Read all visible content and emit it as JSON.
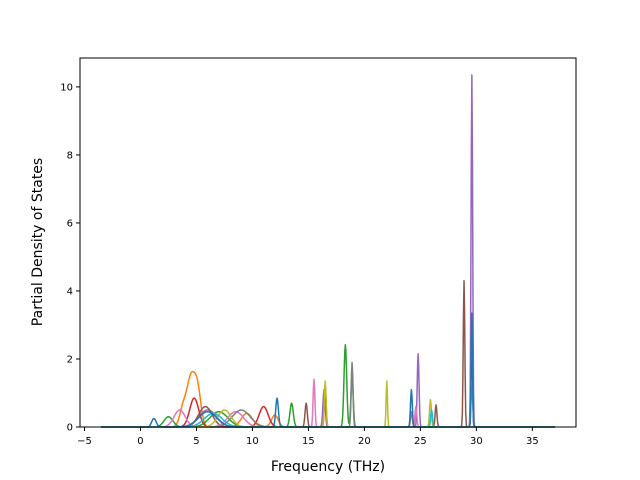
{
  "chart_data": {
    "type": "line",
    "title": "",
    "xlabel": "Frequency (THz)",
    "ylabel": "Partial Density of States",
    "xlim": [
      -5.4,
      38.9
    ],
    "ylim": [
      0,
      10.85
    ],
    "x_ticks": [
      -5,
      0,
      5,
      10,
      15,
      20,
      25,
      30,
      35
    ],
    "x_tick_labels": [
      "−5",
      "0",
      "5",
      "10",
      "15",
      "20",
      "25",
      "30",
      "35"
    ],
    "y_ticks": [
      0,
      2,
      4,
      6,
      8,
      10
    ],
    "y_tick_labels": [
      "0",
      "2",
      "4",
      "6",
      "8",
      "10"
    ],
    "grid": false,
    "legend": "none",
    "colors": [
      "#1f77b4",
      "#ff7f0e",
      "#2ca02c",
      "#d62728",
      "#9467bd",
      "#8c564b",
      "#e377c2",
      "#7f7f7f",
      "#bcbd22",
      "#17becf"
    ],
    "x_range": [
      -3.5,
      37
    ],
    "series": [
      {
        "color": "#ff7f0e",
        "peaks": [
          [
            4.5,
            1.4,
            0.35
          ],
          [
            5.1,
            1.05,
            0.3
          ],
          [
            3.8,
            0.55,
            0.3
          ],
          [
            9.5,
            0.4,
            0.5
          ],
          [
            12.0,
            0.35,
            0.3
          ]
        ]
      },
      {
        "color": "#2ca02c",
        "peaks": [
          [
            18.3,
            2.42,
            0.12
          ],
          [
            18.9,
            1.55,
            0.1
          ],
          [
            13.5,
            0.7,
            0.15
          ],
          [
            7.0,
            0.45,
            0.8
          ],
          [
            2.5,
            0.3,
            0.4
          ]
        ]
      },
      {
        "color": "#9467bd",
        "peaks": [
          [
            29.6,
            10.35,
            0.07
          ],
          [
            24.8,
            2.15,
            0.08
          ],
          [
            16.4,
            1.1,
            0.1
          ],
          [
            6.0,
            0.5,
            0.8
          ]
        ]
      },
      {
        "color": "#8c564b",
        "peaks": [
          [
            28.9,
            4.3,
            0.07
          ],
          [
            26.4,
            0.65,
            0.08
          ],
          [
            14.8,
            0.7,
            0.1
          ],
          [
            5.8,
            0.6,
            0.6
          ]
        ]
      },
      {
        "color": "#d62728",
        "peaks": [
          [
            29.6,
            2.8,
            0.06
          ],
          [
            16.5,
            1.2,
            0.08
          ],
          [
            4.8,
            0.85,
            0.4
          ],
          [
            11.0,
            0.6,
            0.4
          ]
        ]
      },
      {
        "color": "#e377c2",
        "peaks": [
          [
            15.5,
            1.4,
            0.08
          ],
          [
            24.6,
            0.6,
            0.08
          ],
          [
            3.5,
            0.5,
            0.5
          ],
          [
            8.5,
            0.45,
            0.7
          ]
        ]
      },
      {
        "color": "#7f7f7f",
        "peaks": [
          [
            18.9,
            1.9,
            0.08
          ],
          [
            24.2,
            0.45,
            0.08
          ],
          [
            9.0,
            0.5,
            0.8
          ]
        ]
      },
      {
        "color": "#bcbd22",
        "peaks": [
          [
            22.0,
            1.35,
            0.06
          ],
          [
            16.5,
            1.35,
            0.08
          ],
          [
            25.9,
            0.8,
            0.08
          ],
          [
            7.5,
            0.5,
            0.6
          ]
        ]
      },
      {
        "color": "#17becf",
        "peaks": [
          [
            29.6,
            1.2,
            0.08
          ],
          [
            26.0,
            0.5,
            0.08
          ],
          [
            6.5,
            0.4,
            0.8
          ]
        ]
      },
      {
        "color": "#1f77b4",
        "peaks": [
          [
            29.6,
            3.35,
            0.06
          ],
          [
            24.2,
            1.1,
            0.08
          ],
          [
            12.2,
            0.85,
            0.12
          ],
          [
            1.2,
            0.25,
            0.2
          ],
          [
            6.0,
            0.45,
            0.8
          ]
        ]
      }
    ]
  }
}
